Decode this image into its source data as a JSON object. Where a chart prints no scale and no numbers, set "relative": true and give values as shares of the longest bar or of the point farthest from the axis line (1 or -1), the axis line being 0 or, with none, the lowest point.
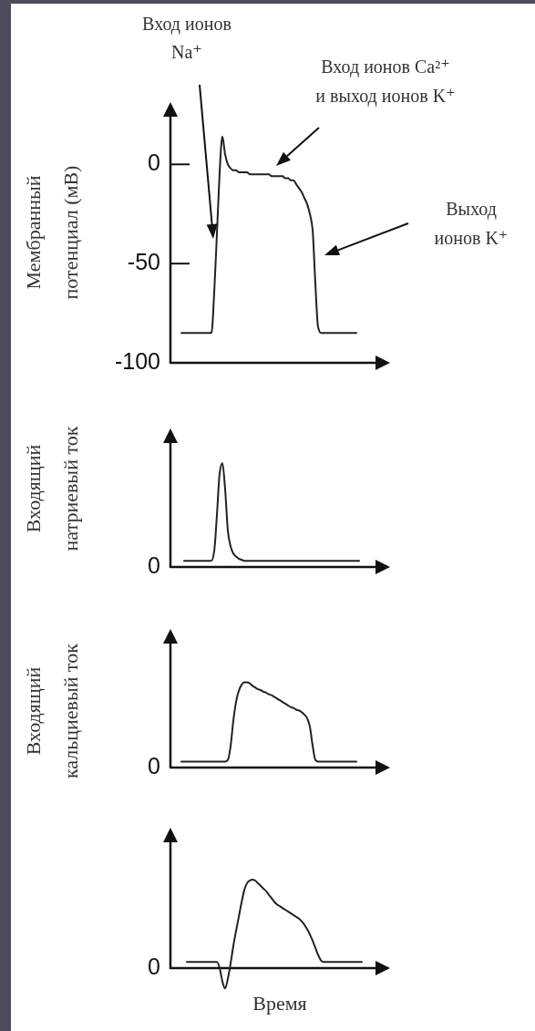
{
  "chart_data": [
    {
      "type": "line",
      "ylabel": "Мембранный\nпотенциал (мВ)",
      "ylim": [
        -100,
        30
      ],
      "yticks": [
        0,
        -50,
        -100
      ],
      "categories": [
        null,
        null,
        null,
        null,
        null,
        null,
        null,
        null,
        null,
        null,
        null,
        null,
        null,
        null,
        null,
        null,
        null,
        null,
        null,
        null,
        null,
        null,
        null,
        null,
        null,
        null,
        null,
        null,
        null,
        null,
        null,
        null,
        null,
        null,
        null,
        null,
        null,
        null,
        null,
        null,
        null,
        null,
        null,
        null,
        null,
        null,
        null,
        null,
        null,
        null,
        null,
        null,
        null,
        null,
        null,
        null,
        null,
        null,
        null,
        null,
        null,
        null,
        null,
        null,
        null,
        null,
        null,
        null,
        null,
        null,
        null,
        null,
        null,
        null,
        null
      ],
      "series": [
        {
          "color": "#222222",
          "values": [
            null,
            null,
            null,
            -85,
            -85,
            -85,
            -85,
            -85,
            -85,
            -85,
            -85,
            -85,
            -85,
            -85,
            -85,
            -65,
            -35,
            -4,
            14,
            5,
            0,
            -2,
            -3,
            -3,
            -4,
            -4,
            -4,
            -4,
            -5,
            -5,
            -5,
            -5,
            -5,
            -5,
            -5,
            -5,
            -6,
            -6,
            -6,
            -6,
            -6,
            -7,
            -7,
            -8,
            -8,
            -10,
            -12,
            -14,
            -17,
            -20,
            -25,
            -33,
            -60,
            -82,
            -85,
            -85,
            -85,
            -85,
            -85,
            -85,
            -85,
            -85,
            -85,
            -85,
            -85,
            -85,
            -85,
            -85,
            null,
            null,
            null,
            null,
            null,
            null,
            null
          ]
        }
      ],
      "annotations": [
        "Вход ионов\nNa⁺",
        "Вход ионов Ca²⁺\nи выход ионов K⁺",
        "Выход\nионов K⁺"
      ]
    },
    {
      "type": "line",
      "ylabel": "Входящий\nнатриевый ток",
      "relative": true,
      "annotations": [
        "0"
      ],
      "categories": [
        null,
        null,
        null,
        null,
        null,
        null,
        null,
        null,
        null,
        null,
        null,
        null,
        null,
        null,
        null,
        null,
        null,
        null,
        null,
        null,
        null,
        null,
        null,
        null,
        null,
        null,
        null,
        null,
        null,
        null,
        null,
        null,
        null,
        null,
        null,
        null,
        null,
        null,
        null,
        null,
        null,
        null,
        null,
        null,
        null,
        null,
        null,
        null,
        null,
        null,
        null,
        null,
        null,
        null,
        null,
        null,
        null,
        null,
        null,
        null,
        null,
        null,
        null,
        null,
        null,
        null,
        null,
        null,
        null,
        null,
        null,
        null,
        null,
        null,
        null
      ],
      "series": [
        {
          "color": "#222222",
          "values": [
            null,
            null,
            null,
            null,
            0.06,
            0.06,
            0.06,
            0.06,
            0.06,
            0.06,
            0.06,
            0.06,
            0.06,
            0.06,
            0.06,
            0.15,
            0.5,
            0.9,
            1,
            0.75,
            0.35,
            0.2,
            0.13,
            0.1,
            0.08,
            0.07,
            0.06,
            0.06,
            0.06,
            0.06,
            0.06,
            0.06,
            0.06,
            0.06,
            0.06,
            0.06,
            0.06,
            0.06,
            0.06,
            0.06,
            0.06,
            0.06,
            0.06,
            0.06,
            0.06,
            0.06,
            0.06,
            0.06,
            0.06,
            0.06,
            0.06,
            0.06,
            0.06,
            0.06,
            0.06,
            0.06,
            0.06,
            0.06,
            0.06,
            0.06,
            0.06,
            0.06,
            0.06,
            0.06,
            0.06,
            0.06,
            0.06,
            0.06,
            0.06,
            null,
            null,
            null,
            null,
            null,
            null
          ]
        }
      ]
    },
    {
      "type": "line",
      "ylabel": "Входящий\nкальциевый ток",
      "relative": true,
      "annotations": [
        "0"
      ],
      "categories": [
        null,
        null,
        null,
        null,
        null,
        null,
        null,
        null,
        null,
        null,
        null,
        null,
        null,
        null,
        null,
        null,
        null,
        null,
        null,
        null,
        null,
        null,
        null,
        null,
        null,
        null,
        null,
        null,
        null,
        null,
        null,
        null,
        null,
        null,
        null,
        null,
        null,
        null,
        null,
        null,
        null,
        null,
        null,
        null,
        null,
        null,
        null,
        null,
        null,
        null,
        null,
        null,
        null,
        null,
        null,
        null,
        null,
        null,
        null,
        null,
        null,
        null,
        null,
        null,
        null,
        null,
        null,
        null,
        null,
        null,
        null,
        null,
        null,
        null,
        null
      ],
      "series": [
        {
          "color": "#222222",
          "values": [
            null,
            null,
            null,
            0.07,
            0.07,
            0.07,
            0.07,
            0.07,
            0.07,
            0.07,
            0.07,
            0.07,
            0.07,
            0.07,
            0.07,
            0.07,
            0.07,
            0.07,
            0.07,
            0.07,
            0.09,
            0.25,
            0.55,
            0.77,
            0.9,
            0.97,
            1,
            1,
            0.99,
            0.96,
            0.94,
            0.92,
            0.91,
            0.89,
            0.88,
            0.86,
            0.85,
            0.83,
            0.81,
            0.79,
            0.77,
            0.75,
            0.73,
            0.71,
            0.7,
            0.68,
            0.67,
            0.65,
            0.62,
            0.58,
            0.48,
            0.26,
            0.09,
            0.07,
            0.07,
            0.07,
            0.07,
            0.07,
            0.07,
            0.07,
            0.07,
            0.07,
            0.07,
            0.07,
            0.07,
            0.07,
            0.07,
            0.07,
            null,
            null,
            null,
            null,
            null,
            null,
            null
          ]
        }
      ]
    },
    {
      "type": "line",
      "xlabel": "Время",
      "relative": true,
      "annotations": [
        "0"
      ],
      "categories": [
        null,
        null,
        null,
        null,
        null,
        null,
        null,
        null,
        null,
        null,
        null,
        null,
        null,
        null,
        null,
        null,
        null,
        null,
        null,
        null,
        null,
        null,
        null,
        null,
        null,
        null,
        null,
        null,
        null,
        null,
        null,
        null,
        null,
        null,
        null,
        null,
        null,
        null,
        null,
        null,
        null,
        null,
        null,
        null,
        null,
        null,
        null,
        null,
        null,
        null,
        null,
        null,
        null,
        null,
        null,
        null,
        null,
        null,
        null,
        null,
        null,
        null,
        null,
        null,
        null,
        null,
        null,
        null,
        null,
        null,
        null,
        null,
        null,
        null,
        null
      ],
      "series": [
        {
          "color": "#222222",
          "values": [
            null,
            null,
            null,
            null,
            null,
            0.07,
            0.07,
            0.07,
            0.07,
            0.07,
            0.07,
            0.07,
            0.07,
            0.07,
            0.07,
            0.07,
            0.07,
            0,
            -0.15,
            -0.23,
            -0.12,
            0.05,
            0.25,
            0.42,
            0.58,
            0.74,
            0.88,
            0.96,
            0.99,
            1,
            0.99,
            0.96,
            0.93,
            0.9,
            0.87,
            0.83,
            0.79,
            0.75,
            0.72,
            0.7,
            0.68,
            0.66,
            0.64,
            0.62,
            0.6,
            0.58,
            0.56,
            0.53,
            0.49,
            0.44,
            0.38,
            0.31,
            0.23,
            0.15,
            0.09,
            0.07,
            0.07,
            0.07,
            0.07,
            0.07,
            0.07,
            0.07,
            0.07,
            0.07,
            0.07,
            0.07,
            0.07,
            0.07,
            0.07,
            0.07,
            null,
            null,
            null,
            null,
            null
          ]
        }
      ]
    }
  ]
}
